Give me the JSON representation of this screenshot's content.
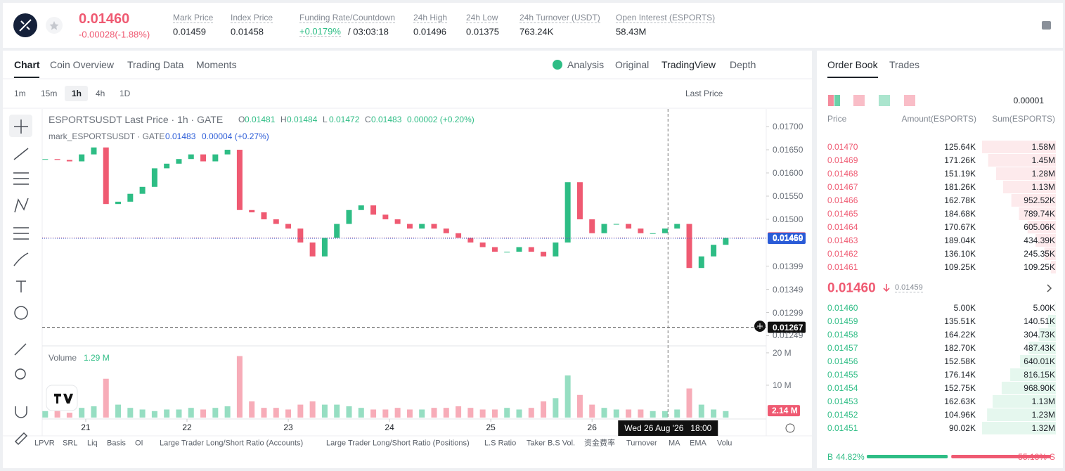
{
  "header": {
    "price": "0.01460",
    "change": "-0.00028(-1.88%)",
    "stats": [
      {
        "label": "Mark Price",
        "value": "0.01459"
      },
      {
        "label": "Index Price",
        "value": "0.01458"
      },
      {
        "label": "Funding Rate/Countdown",
        "value": "+0.0179%",
        "extra": "/ 03:03:18"
      },
      {
        "label": "24h High",
        "value": "0.01496"
      },
      {
        "label": "24h Low",
        "value": "0.01375"
      },
      {
        "label": "24h Turnover (USDT)",
        "value": "763.24K"
      },
      {
        "label": "Open Interest (ESPORTS)",
        "value": "58.43M"
      }
    ]
  },
  "tabs": [
    "Chart",
    "Coin Overview",
    "Trading Data",
    "Moments"
  ],
  "views": [
    "Analysis",
    "Original",
    "TradingView",
    "Depth"
  ],
  "intervals": [
    "1m",
    "15m",
    "1h",
    "4h",
    "1D"
  ],
  "price_type": "Last Price",
  "legend": {
    "title": "ESPORTSUSDT Last Price · 1h · GATE",
    "ohlc": [
      {
        "key": "O",
        "value": "0.01481"
      },
      {
        "key": "H",
        "value": "0.01484"
      },
      {
        "key": "L",
        "value": "0.01472"
      },
      {
        "key": "C",
        "value": "0.01483"
      }
    ],
    "change": "0.00002 (+0.20%)",
    "mark_title": "mark_ESPORTSUSDT · GATE",
    "mark_value": "0.01483",
    "mark_change": "0.00004 (+0.27%)"
  },
  "chart_data": {
    "type": "candlestick",
    "up_color": "#2ebd85",
    "down_color": "#ef5a72",
    "x": [
      20.6,
      20.72,
      20.84,
      20.96,
      21.08,
      21.2,
      21.32,
      21.44,
      21.56,
      21.68,
      21.8,
      21.92,
      22.04,
      22.16,
      22.28,
      22.4,
      22.52,
      22.64,
      22.76,
      22.88,
      23,
      23.12,
      23.24,
      23.36,
      23.48,
      23.6,
      23.72,
      23.84,
      23.96,
      24.08,
      24.2,
      24.32,
      24.44,
      24.56,
      24.68,
      24.8,
      24.92,
      25.04,
      25.16,
      25.28,
      25.4,
      25.52,
      25.64,
      25.76,
      25.88,
      26,
      26.12,
      26.24,
      26.36,
      26.48,
      26.6,
      26.72,
      26.84,
      26.96,
      27.08,
      27.2,
      27.32
    ],
    "close": [
      0.0163,
      0.01628,
      0.01625,
      0.0164,
      0.01655,
      0.01533,
      0.01538,
      0.01555,
      0.0157,
      0.0161,
      0.0162,
      0.0163,
      0.0164,
      0.01625,
      0.0164,
      0.0165,
      0.0152,
      0.01515,
      0.015,
      0.0149,
      0.0148,
      0.0145,
      0.0142,
      0.0146,
      0.0149,
      0.0152,
      0.0153,
      0.0151,
      0.015,
      0.0149,
      0.0148,
      0.0149,
      0.0148,
      0.0147,
      0.0146,
      0.0145,
      0.0144,
      0.0143,
      0.0143,
      0.0144,
      0.0143,
      0.0142,
      0.0145,
      0.0158,
      0.015,
      0.0147,
      0.0149,
      0.0149,
      0.0148,
      0.0147,
      0.0147,
      0.0148,
      0.0149,
      0.01395,
      0.0142,
      0.01445,
      0.0146
    ],
    "xlim": [
      20.57,
      27.72
    ],
    "xticks": [
      21,
      22,
      23,
      24,
      25,
      26
    ],
    "ylim": [
      0.01227,
      0.01738
    ],
    "yticks": [
      {
        "value": 0.017,
        "label": "0.01700"
      },
      {
        "value": 0.0165,
        "label": "0.01650"
      },
      {
        "value": 0.016,
        "label": "0.01600"
      },
      {
        "value": 0.0155,
        "label": "0.01550"
      },
      {
        "value": 0.015,
        "label": "0.01500"
      },
      {
        "value": 0.01399,
        "label": "0.01399"
      },
      {
        "value": 0.01349,
        "label": "0.01349"
      },
      {
        "value": 0.01299,
        "label": "0.01299"
      },
      {
        "value": 0.01249,
        "label": "0.01249"
      }
    ],
    "price_lines": [
      {
        "value": 0.0146,
        "label": "0.01460",
        "color": "#ef5a72"
      },
      {
        "value": 0.01459,
        "label": "0.01459",
        "color": "#2a5bd7"
      },
      {
        "value": 0.01267,
        "label": "0.01267",
        "color": "#111111"
      }
    ],
    "crosshair": {
      "x": 26.75,
      "date": "Wed 26 Aug '26",
      "time": "18:00"
    },
    "volume": {
      "title": "Volume",
      "current": "1.29 M",
      "ylim": [
        0,
        21.5
      ],
      "yticks": [
        {
          "value": 20,
          "label": "20 M"
        },
        {
          "value": 10,
          "label": "10 M"
        }
      ],
      "last": {
        "value": 2.14,
        "label": "2.14 M"
      },
      "values": [
        2,
        2,
        1.5,
        3,
        3.5,
        12,
        4,
        3,
        2.5,
        2,
        2.5,
        2.5,
        3,
        2.5,
        3,
        3.5,
        19,
        5,
        3,
        3,
        2.5,
        4,
        5,
        4,
        4,
        3.5,
        3,
        2.5,
        2.5,
        3,
        2.5,
        2.5,
        3,
        3,
        3.5,
        3,
        2.5,
        2.5,
        3,
        2.5,
        3,
        5,
        6,
        13,
        7,
        4,
        3,
        2.5,
        2.5,
        2.5,
        2,
        2,
        2.5,
        9,
        4,
        2.5,
        2
      ]
    }
  },
  "indicators": [
    "LPVR",
    "SRL",
    "Liq",
    "Basis",
    "OI",
    "Large Trader Long/Short Ratio (Accounts)",
    "Large Trader Long/Short Ratio (Positions)",
    "L.S Ratio",
    "Taker B.S Vol.",
    "资金费率",
    "Turnover",
    "MA",
    "EMA",
    "Volu"
  ],
  "order_book": {
    "tabs": [
      "Order Book",
      "Trades"
    ],
    "precision": "0.00001",
    "headers": [
      "Price",
      "Amount(ESPORTS)",
      "Sum(ESPORTS)"
    ],
    "asks": [
      {
        "price": "0.01470",
        "amount": "125.64K",
        "sum": 1580000,
        "sum_label": "1.58M"
      },
      {
        "price": "0.01469",
        "amount": "171.26K",
        "sum": 1450000,
        "sum_label": "1.45M"
      },
      {
        "price": "0.01468",
        "amount": "151.19K",
        "sum": 1280000,
        "sum_label": "1.28M"
      },
      {
        "price": "0.01467",
        "amount": "181.26K",
        "sum": 1130000,
        "sum_label": "1.13M"
      },
      {
        "price": "0.01466",
        "amount": "162.78K",
        "sum": 952520,
        "sum_label": "952.52K"
      },
      {
        "price": "0.01465",
        "amount": "184.68K",
        "sum": 789740,
        "sum_label": "789.74K"
      },
      {
        "price": "0.01464",
        "amount": "170.67K",
        "sum": 605060,
        "sum_label": "605.06K"
      },
      {
        "price": "0.01463",
        "amount": "189.04K",
        "sum": 434390,
        "sum_label": "434.39K"
      },
      {
        "price": "0.01462",
        "amount": "136.10K",
        "sum": 245350,
        "sum_label": "245.35K"
      },
      {
        "price": "0.01461",
        "amount": "109.25K",
        "sum": 109250,
        "sum_label": "109.25K"
      }
    ],
    "mid": {
      "price": "0.01460",
      "mark": "0.01459"
    },
    "bids": [
      {
        "price": "0.01460",
        "amount": "5.00K",
        "sum": 5000,
        "sum_label": "5.00K"
      },
      {
        "price": "0.01459",
        "amount": "135.51K",
        "sum": 140510,
        "sum_label": "140.51K"
      },
      {
        "price": "0.01458",
        "amount": "164.22K",
        "sum": 304730,
        "sum_label": "304.73K"
      },
      {
        "price": "0.01457",
        "amount": "182.70K",
        "sum": 487430,
        "sum_label": "487.43K"
      },
      {
        "price": "0.01456",
        "amount": "152.58K",
        "sum": 640010,
        "sum_label": "640.01K"
      },
      {
        "price": "0.01455",
        "amount": "176.14K",
        "sum": 816150,
        "sum_label": "816.15K"
      },
      {
        "price": "0.01454",
        "amount": "152.75K",
        "sum": 968900,
        "sum_label": "968.90K"
      },
      {
        "price": "0.01453",
        "amount": "162.63K",
        "sum": 1130000,
        "sum_label": "1.13M"
      },
      {
        "price": "0.01452",
        "amount": "104.96K",
        "sum": 1230000,
        "sum_label": "1.23M"
      },
      {
        "price": "0.01451",
        "amount": "90.02K",
        "sum": 1320000,
        "sum_label": "1.32M"
      }
    ],
    "ratio": {
      "buy_key": "B",
      "buy": 44.82,
      "buy_label": "44.82%",
      "sell": 55.18,
      "sell_label": "55.18%",
      "sell_key": "S"
    }
  }
}
